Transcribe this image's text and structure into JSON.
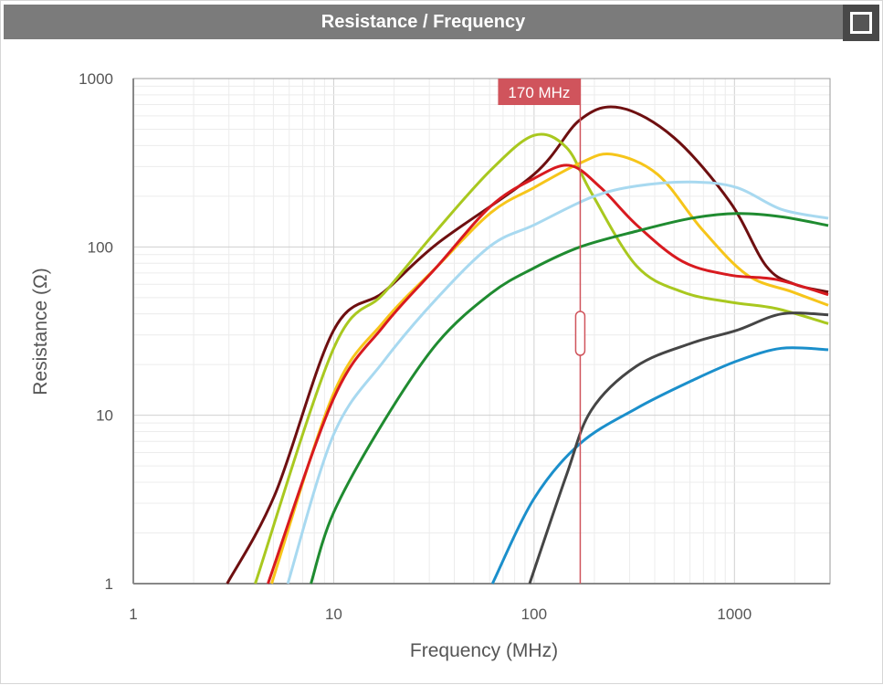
{
  "window": {
    "title": "Resistance / Frequency",
    "maximize_icon": "square-icon"
  },
  "chart_data": {
    "type": "line",
    "title": "Resistance / Frequency",
    "xlabel": "Frequency (MHz)",
    "ylabel": "Resistance (Ω)",
    "xscale": "log",
    "yscale": "log",
    "xlim": [
      1,
      3000
    ],
    "ylim": [
      1,
      1000
    ],
    "xticks": [
      "1",
      "10",
      "100",
      "1000"
    ],
    "yticks": [
      "1000",
      "100",
      "10",
      "1"
    ],
    "grid": true,
    "marker": {
      "x": 170,
      "label": "170 MHz",
      "color": "#d0545c"
    },
    "series": [
      {
        "name": "dark-red",
        "color": "#6e0f10",
        "x": [
          2.94,
          5.1,
          10,
          17.8,
          33,
          100,
          170,
          270,
          500,
          950,
          1440,
          2000,
          2940
        ],
        "y": [
          1,
          3.4,
          32,
          54,
          105,
          270,
          570,
          670,
          445,
          185,
          77,
          60,
          54
        ]
      },
      {
        "name": "yellow-green",
        "color": "#a9c81f",
        "x": [
          4.06,
          10,
          17.8,
          33,
          61,
          100,
          145,
          193,
          325,
          550,
          950,
          1620,
          2940
        ],
        "y": [
          1,
          25,
          53,
          127,
          287,
          460,
          390,
          210,
          77,
          54,
          47,
          43,
          35
        ]
      },
      {
        "name": "yellow",
        "color": "#f6c51a",
        "x": [
          4.9,
          10,
          17.8,
          33,
          61,
          100,
          170,
          245,
          413,
          690,
          1160,
          1950,
          2940
        ],
        "y": [
          1,
          13.5,
          36,
          77,
          160,
          225,
          315,
          355,
          270,
          127,
          68,
          54,
          45
        ]
      },
      {
        "name": "red",
        "color": "#d81a1f",
        "x": [
          4.7,
          10,
          17.8,
          33,
          61,
          100,
          150,
          215,
          325,
          550,
          950,
          1620,
          2940
        ],
        "y": [
          1,
          12.6,
          34,
          77,
          175,
          255,
          305,
          225,
          135,
          82,
          68,
          64,
          52
        ]
      },
      {
        "name": "light-blue",
        "color": "#a8d9f0",
        "x": [
          5.9,
          10,
          17.8,
          33,
          61,
          100,
          193,
          325,
          610,
          1030,
          1720,
          2940
        ],
        "y": [
          1,
          7.7,
          21,
          50,
          102,
          135,
          197,
          230,
          243,
          225,
          167,
          148
        ]
      },
      {
        "name": "green",
        "color": "#1f8b30",
        "x": [
          7.7,
          10,
          17.8,
          33,
          61,
          100,
          170,
          325,
          610,
          1030,
          1720,
          2940
        ],
        "y": [
          1,
          2.65,
          9.2,
          27,
          53,
          75,
          100,
          124,
          148,
          158,
          151,
          134
        ]
      },
      {
        "name": "blue",
        "color": "#1b8fcb",
        "x": [
          62,
          100,
          170,
          325,
          610,
          1030,
          1720,
          2940
        ],
        "y": [
          1,
          3.2,
          6.8,
          11,
          16,
          21,
          25,
          24.5
        ]
      },
      {
        "name": "dark-gray",
        "color": "#454545",
        "x": [
          95,
          145,
          193,
          325,
          610,
          1030,
          1720,
          2940
        ],
        "y": [
          1,
          4.4,
          10.7,
          19.6,
          26.8,
          32,
          40,
          39.5
        ]
      }
    ]
  }
}
